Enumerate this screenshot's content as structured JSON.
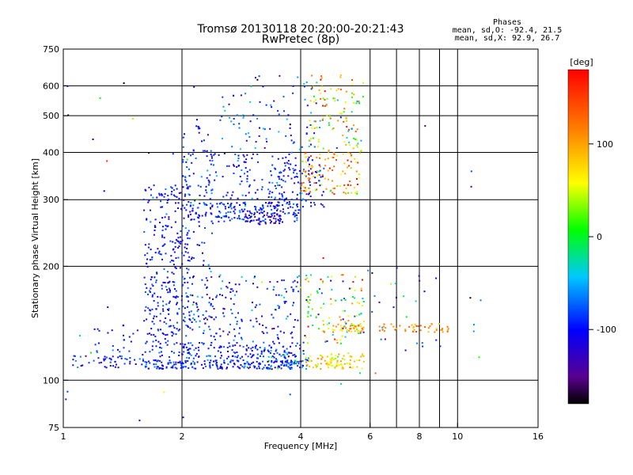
{
  "chart_data": {
    "type": "scatter",
    "title": "Tromsø 20130118 20:20:00-20:21:43",
    "subtitle": "RwPretec (8p)",
    "xlabel": "Frequency [MHz]",
    "ylabel": "Stationary phase Virtual Height [km]",
    "xscale": "log",
    "yscale": "log",
    "xlim": [
      1,
      16
    ],
    "ylim": [
      75,
      750
    ],
    "x_ticks": [
      1,
      2,
      4,
      6,
      8,
      10,
      16
    ],
    "x_tick_labels": [
      "1",
      "2",
      "4",
      "6",
      "8",
      "10",
      "16"
    ],
    "y_ticks": [
      75,
      100,
      200,
      300,
      400,
      500,
      600,
      750
    ],
    "y_tick_labels": [
      "75",
      "100",
      "200",
      "300",
      "400",
      "500",
      "600",
      "750"
    ],
    "grid_x": [
      2,
      4,
      6,
      7,
      8,
      9,
      10
    ],
    "grid_y": [
      100,
      200,
      300,
      400,
      500,
      600
    ],
    "grid": true,
    "info": {
      "heading": "Phases",
      "line_o": "mean, sd,O: -92.4, 21.5",
      "line_x": "mean, sd,X:  92.9, 26.7"
    },
    "colorbar": {
      "label": "[deg]",
      "min": -180,
      "max": 180,
      "ticks": [
        100,
        0,
        -100
      ],
      "tick_labels": [
        "100",
        "0",
        "-100"
      ],
      "placement": "right"
    },
    "clusters": [
      {
        "fmin": 1.02,
        "fmax": 1.6,
        "hmin": 108,
        "hmax": 116,
        "phase": -95,
        "sd": 20,
        "n": 45
      },
      {
        "fmin": 1.6,
        "fmax": 4.0,
        "hmin": 107,
        "hmax": 113,
        "phase": -95,
        "sd": 20,
        "n": 220
      },
      {
        "fmin": 2.0,
        "fmax": 4.0,
        "hmin": 114,
        "hmax": 126,
        "phase": -95,
        "sd": 20,
        "n": 130
      },
      {
        "fmin": 3.3,
        "fmax": 4.2,
        "hmin": 107,
        "hmax": 120,
        "phase": -80,
        "sd": 60,
        "n": 45
      },
      {
        "fmin": 4.1,
        "fmax": 5.8,
        "hmin": 107,
        "hmax": 118,
        "phase": 75,
        "sd": 25,
        "n": 90
      },
      {
        "fmin": 1.2,
        "fmax": 1.6,
        "hmin": 112,
        "hmax": 140,
        "phase": -100,
        "sd": 20,
        "n": 30
      },
      {
        "fmin": 1.6,
        "fmax": 2.1,
        "hmin": 115,
        "hmax": 330,
        "phase": -100,
        "sd": 18,
        "n": 340
      },
      {
        "fmin": 2.0,
        "fmax": 2.4,
        "hmin": 130,
        "hmax": 490,
        "phase": -95,
        "sd": 22,
        "n": 110
      },
      {
        "fmin": 2.1,
        "fmax": 4.0,
        "hmin": 262,
        "hmax": 295,
        "phase": -95,
        "sd": 20,
        "n": 190
      },
      {
        "fmin": 2.9,
        "fmax": 3.6,
        "hmin": 258,
        "hmax": 275,
        "phase": -120,
        "sd": 18,
        "n": 40
      },
      {
        "fmin": 3.3,
        "fmax": 4.6,
        "hmin": 285,
        "hmax": 390,
        "phase": -100,
        "sd": 22,
        "n": 110
      },
      {
        "fmin": 2.3,
        "fmax": 4.0,
        "hmin": 300,
        "hmax": 400,
        "phase": -95,
        "sd": 25,
        "n": 110
      },
      {
        "fmin": 4.0,
        "fmax": 5.8,
        "hmin": 310,
        "hmax": 400,
        "phase": 110,
        "sd": 45,
        "n": 110
      },
      {
        "fmin": 2.5,
        "fmax": 4.4,
        "hmin": 400,
        "hmax": 640,
        "phase": -85,
        "sd": 35,
        "n": 90
      },
      {
        "fmin": 4.2,
        "fmax": 5.8,
        "hmin": 400,
        "hmax": 640,
        "phase": 60,
        "sd": 60,
        "n": 110
      },
      {
        "fmin": 2.1,
        "fmax": 4.0,
        "hmin": 125,
        "hmax": 190,
        "phase": -95,
        "sd": 30,
        "n": 170
      },
      {
        "fmin": 4.0,
        "fmax": 5.8,
        "hmin": 125,
        "hmax": 190,
        "phase": 25,
        "sd": 80,
        "n": 110
      },
      {
        "fmin": 4.5,
        "fmax": 5.8,
        "hmin": 134,
        "hmax": 141,
        "phase": 95,
        "sd": 25,
        "n": 45
      },
      {
        "fmin": 6.3,
        "fmax": 9.6,
        "hmin": 134,
        "hmax": 141,
        "phase": 110,
        "sd": 20,
        "n": 45
      },
      {
        "fmin": 6.0,
        "fmax": 9.5,
        "hmin": 120,
        "hmax": 200,
        "phase": -95,
        "sd": 40,
        "n": 22
      },
      {
        "fmin": 1.0,
        "fmax": 12.0,
        "hmin": 78,
        "hmax": 640,
        "phase": -60,
        "sd": 90,
        "n": 45
      }
    ]
  }
}
